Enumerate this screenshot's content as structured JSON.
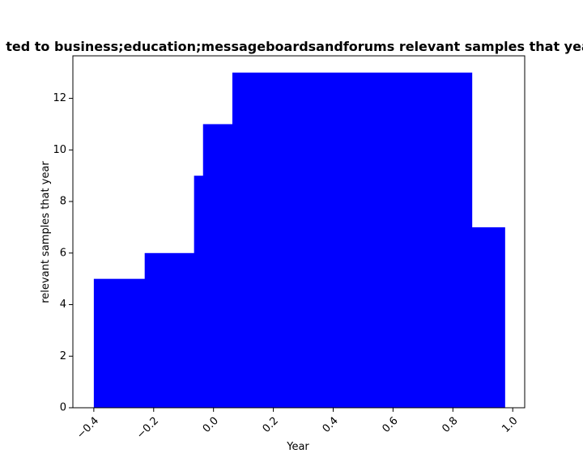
{
  "chart_data": {
    "type": "bar",
    "title": "ted to business;education;messageboardsandforums relevant samples that yea",
    "xlabel": "Year",
    "ylabel": "relevant samples that year",
    "bars": [
      {
        "x0": -0.4,
        "x1": -0.23,
        "value": 5
      },
      {
        "x0": -0.23,
        "x1": -0.065,
        "value": 6
      },
      {
        "x0": -0.065,
        "x1": -0.035,
        "value": 9
      },
      {
        "x0": -0.035,
        "x1": 0.063,
        "value": 11
      },
      {
        "x0": 0.063,
        "x1": 0.863,
        "value": 13
      },
      {
        "x0": 0.863,
        "x1": 0.973,
        "value": 7
      }
    ],
    "xlim": [
      -0.47,
      1.04
    ],
    "ylim": [
      0,
      13.65
    ],
    "xticks": [
      -0.4,
      -0.2,
      0.0,
      0.2,
      0.4,
      0.6,
      0.8,
      1.0
    ],
    "xtick_labels": [
      "−0.4",
      "−0.2",
      "0.0",
      "0.2",
      "0.4",
      "0.6",
      "0.8",
      "1.0"
    ],
    "yticks": [
      0,
      2,
      4,
      6,
      8,
      10,
      12
    ],
    "ytick_labels": [
      "0",
      "2",
      "4",
      "6",
      "8",
      "10",
      "12"
    ],
    "grid": false,
    "colors": {
      "bar": "#0000ff",
      "axis": "#000000"
    }
  }
}
